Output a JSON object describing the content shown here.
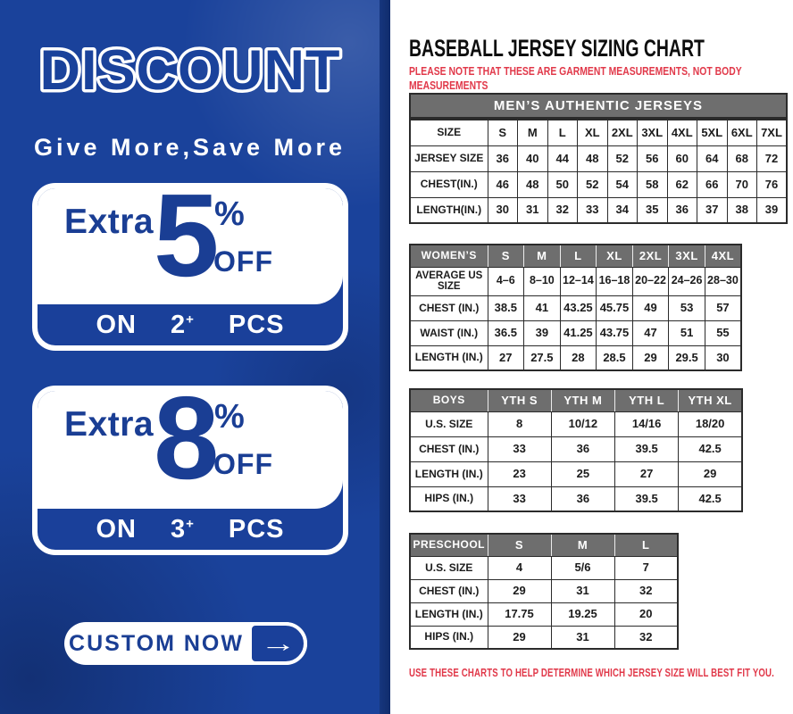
{
  "colors": {
    "panel_blue": "#1a429b",
    "accent_blue": "#1a3e94",
    "band_blue": "#1a409a",
    "header_gray": "#6e6e6e",
    "note_red": "#e1394a",
    "table_border": "#2b2b2b"
  },
  "left_panel": {
    "title": "DISCOUNT",
    "subtitle": "Give More,Save More",
    "offers": [
      {
        "prefix": "Extra",
        "value": "5",
        "percent": "%",
        "off_label": "OFF",
        "on_label": "ON",
        "qty": "2",
        "plus": "+",
        "pcs_label": "PCS"
      },
      {
        "prefix": "Extra",
        "value": "8",
        "percent": "%",
        "off_label": "OFF",
        "on_label": "ON",
        "qty": "3",
        "plus": "+",
        "pcs_label": "PCS"
      }
    ],
    "cta_label": "CUSTOM NOW",
    "cta_arrow": "→"
  },
  "right_panel": {
    "title": "BASEBALL JERSEY SIZING CHART",
    "note_top": "PLEASE NOTE THAT THESE ARE GARMENT MEASUREMENTS, NOT BODY MEASUREMENTS",
    "mens_banner": "MEN’S AUTHENTIC JERSEYS",
    "note_bottom": "USE THESE CHARTS TO HELP DETERMINE WHICH JERSEY SIZE WILL BEST FIT YOU.",
    "tables": [
      {
        "name": "mens-authentic-jerseys",
        "header_gray": false,
        "header": [
          "SIZE",
          "S",
          "M",
          "L",
          "XL",
          "2XL",
          "3XL",
          "4XL",
          "5XL",
          "6XL",
          "7XL"
        ],
        "rows": [
          [
            "JERSEY SIZE",
            "36",
            "40",
            "44",
            "48",
            "52",
            "56",
            "60",
            "64",
            "68",
            "72"
          ],
          [
            "CHEST(IN.)",
            "46",
            "48",
            "50",
            "52",
            "54",
            "58",
            "62",
            "66",
            "70",
            "76"
          ],
          [
            "LENGTH(IN.)",
            "30",
            "31",
            "32",
            "33",
            "34",
            "35",
            "36",
            "37",
            "38",
            "39"
          ]
        ]
      },
      {
        "name": "womens",
        "header_gray": true,
        "header": [
          "WOMEN’S",
          "S",
          "M",
          "L",
          "XL",
          "2XL",
          "3XL",
          "4XL"
        ],
        "rows": [
          [
            "AVERAGE US SIZE",
            "4–6",
            "8–10",
            "12–14",
            "16–18",
            "20–22",
            "24–26",
            "28–30"
          ],
          [
            "CHEST (IN.)",
            "38.5",
            "41",
            "43.25",
            "45.75",
            "49",
            "53",
            "57"
          ],
          [
            "WAIST (IN.)",
            "36.5",
            "39",
            "41.25",
            "43.75",
            "47",
            "51",
            "55"
          ],
          [
            "LENGTH (IN.)",
            "27",
            "27.5",
            "28",
            "28.5",
            "29",
            "29.5",
            "30"
          ]
        ]
      },
      {
        "name": "boys",
        "header_gray": true,
        "header": [
          "BOYS",
          "YTH S",
          "YTH M",
          "YTH L",
          "YTH XL"
        ],
        "rows": [
          [
            "U.S. SIZE",
            "8",
            "10/12",
            "14/16",
            "18/20"
          ],
          [
            "CHEST (IN.)",
            "33",
            "36",
            "39.5",
            "42.5"
          ],
          [
            "LENGTH (IN.)",
            "23",
            "25",
            "27",
            "29"
          ],
          [
            "HIPS (IN.)",
            "33",
            "36",
            "39.5",
            "42.5"
          ]
        ]
      },
      {
        "name": "preschool",
        "header_gray": true,
        "header": [
          "PRESCHOOL",
          "S",
          "M",
          "L"
        ],
        "rows": [
          [
            "U.S. SIZE",
            "4",
            "5/6",
            "7"
          ],
          [
            "CHEST (IN.)",
            "29",
            "31",
            "32"
          ],
          [
            "LENGTH (IN.)",
            "17.75",
            "19.25",
            "20"
          ],
          [
            "HIPS (IN.)",
            "29",
            "31",
            "32"
          ]
        ]
      }
    ]
  }
}
